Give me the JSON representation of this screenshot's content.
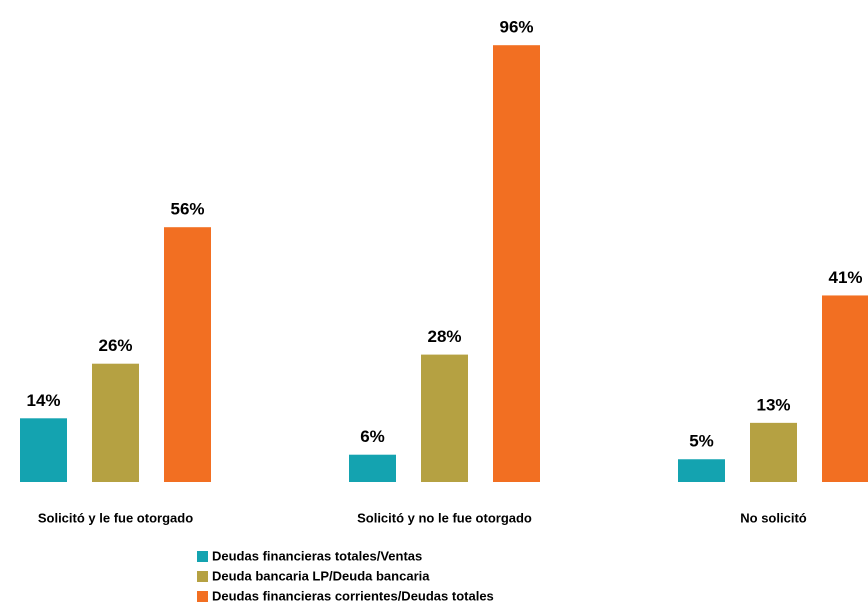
{
  "chart_data": {
    "type": "bar",
    "categories": [
      "Solicitó y le fue otorgado",
      "Solicitó y no le fue otorgado",
      "No solicitó"
    ],
    "series": [
      {
        "name": "Deudas financieras totales/Ventas",
        "color": "#14a3b0",
        "values": [
          14,
          6,
          5
        ],
        "value_labels": [
          "14%",
          "6%",
          "5%"
        ]
      },
      {
        "name": "Deuda bancaria LP/Deuda bancaria",
        "color": "#b5a142",
        "values": [
          26,
          28,
          13
        ],
        "value_labels": [
          "26%",
          "28%",
          "13%"
        ]
      },
      {
        "name": "Deudas financieras corrientes/Deudas totales",
        "color": "#f26f22",
        "values": [
          56,
          96,
          41
        ],
        "value_labels": [
          "56%",
          "96%",
          "41%"
        ]
      }
    ]
  }
}
